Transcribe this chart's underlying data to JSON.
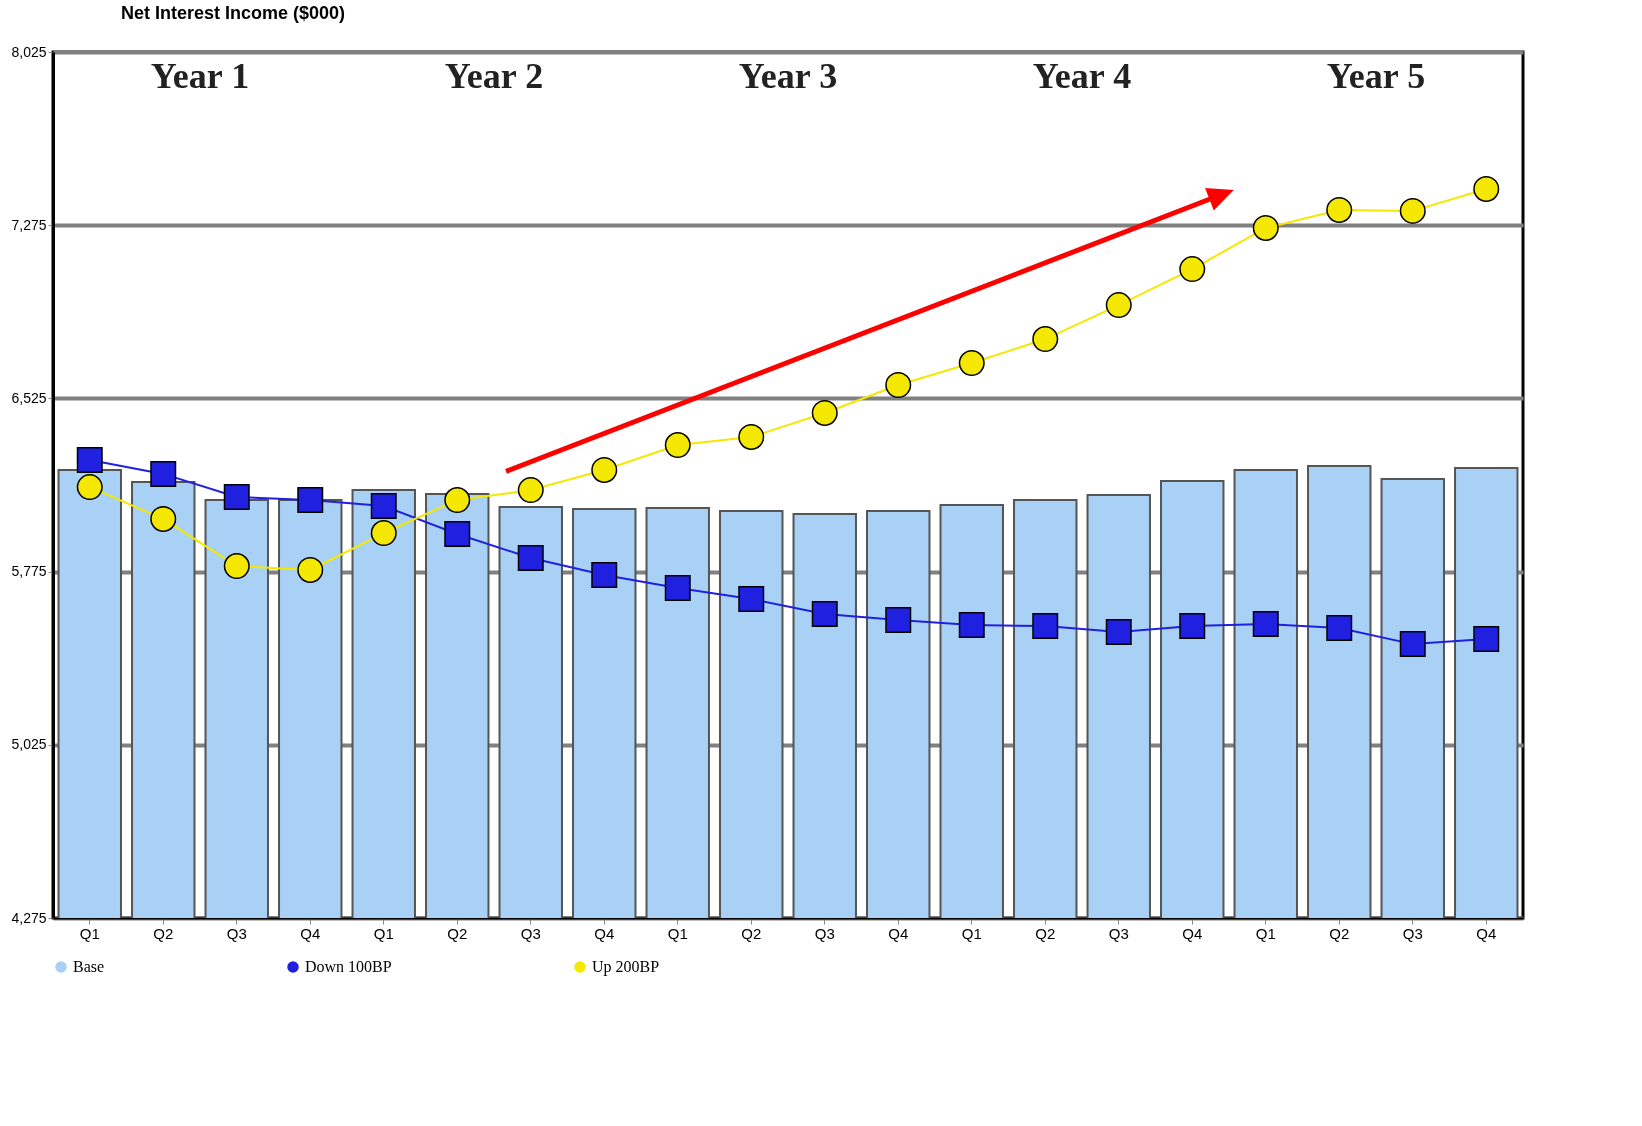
{
  "chart_data": {
    "type": "bar",
    "title": "Net Interest Income ($000)",
    "categories": [
      "Q1",
      "Q2",
      "Q3",
      "Q4",
      "Q1",
      "Q2",
      "Q3",
      "Q4",
      "Q1",
      "Q2",
      "Q3",
      "Q4",
      "Q1",
      "Q2",
      "Q3",
      "Q4",
      "Q1",
      "Q2",
      "Q3",
      "Q4"
    ],
    "series": [
      {
        "name": "Base",
        "color": "#a9d0f5",
        "values": [
          6215,
          6163,
          6085,
          6085,
          6128,
          6111,
          6055,
          6046,
          6050,
          6037,
          6024,
          6037,
          6063,
          6085,
          6107,
          6167,
          6215,
          6232,
          6176,
          6224
        ]
      },
      {
        "name": "Down 100BP",
        "type": "line",
        "color": "#2020e0",
        "marker": "square",
        "values": [
          6258,
          6198,
          6098,
          6085,
          6059,
          5938,
          5834,
          5760,
          5704,
          5656,
          5591,
          5565,
          5544,
          5539,
          5513,
          5539,
          5548,
          5531,
          5461,
          5483
        ]
      },
      {
        "name": "Up 200BP",
        "type": "line",
        "color": "#f5e800",
        "marker": "circle",
        "values": [
          6141,
          6003,
          5799,
          5782,
          5942,
          6085,
          6128,
          6215,
          6323,
          6358,
          6462,
          6583,
          6678,
          6782,
          6929,
          7085,
          7263,
          7341,
          7337,
          7432
        ]
      }
    ],
    "ylim": [
      4275,
      8025
    ],
    "yticks": [
      {
        "value": 4275,
        "label": "4,275"
      },
      {
        "value": 5025,
        "label": "5,025"
      },
      {
        "value": 5775,
        "label": "5,775"
      },
      {
        "value": 6525,
        "label": "6,525"
      },
      {
        "value": 7275,
        "label": "7,275"
      },
      {
        "value": 8025,
        "label": "8,025"
      }
    ],
    "grid": "y",
    "legend": "bottom",
    "annotations": [
      "Year 1",
      "Year 2",
      "Year 3",
      "Year 4",
      "Year 5"
    ]
  }
}
